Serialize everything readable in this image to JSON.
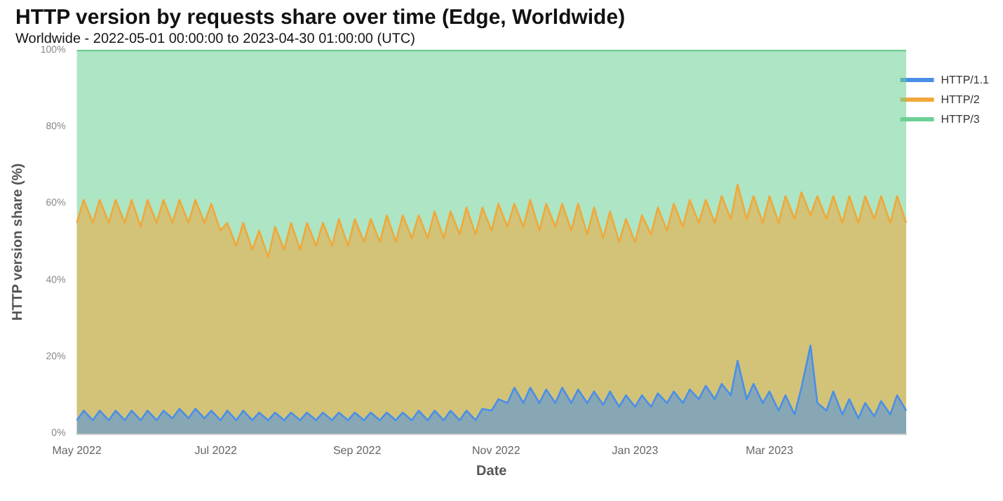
{
  "chart_data": {
    "type": "area",
    "stacked": true,
    "title": "HTTP version by requests share over time (Edge, Worldwide)",
    "subtitle": "Worldwide - 2022-05-01 00:00:00 to 2023-04-30 01:00:00 (UTC)",
    "xlabel": "Date",
    "ylabel": "HTTP version share (%)",
    "legend": "top right",
    "x": [
      "2022-05-01",
      "2022-05-04",
      "2022-05-08",
      "2022-05-11",
      "2022-05-15",
      "2022-05-18",
      "2022-05-22",
      "2022-05-25",
      "2022-05-29",
      "2022-06-01",
      "2022-06-05",
      "2022-06-08",
      "2022-06-12",
      "2022-06-15",
      "2022-06-19",
      "2022-06-22",
      "2022-06-26",
      "2022-06-29",
      "2022-07-03",
      "2022-07-06",
      "2022-07-10",
      "2022-07-13",
      "2022-07-17",
      "2022-07-20",
      "2022-07-24",
      "2022-07-27",
      "2022-07-31",
      "2022-08-03",
      "2022-08-07",
      "2022-08-10",
      "2022-08-14",
      "2022-08-17",
      "2022-08-21",
      "2022-08-24",
      "2022-08-28",
      "2022-08-31",
      "2022-09-04",
      "2022-09-07",
      "2022-09-11",
      "2022-09-14",
      "2022-09-18",
      "2022-09-21",
      "2022-09-25",
      "2022-09-28",
      "2022-10-02",
      "2022-10-05",
      "2022-10-09",
      "2022-10-12",
      "2022-10-16",
      "2022-10-19",
      "2022-10-23",
      "2022-10-26",
      "2022-10-30",
      "2022-11-02",
      "2022-11-06",
      "2022-11-09",
      "2022-11-13",
      "2022-11-16",
      "2022-11-20",
      "2022-11-23",
      "2022-11-27",
      "2022-11-30",
      "2022-12-04",
      "2022-12-07",
      "2022-12-11",
      "2022-12-14",
      "2022-12-18",
      "2022-12-21",
      "2022-12-25",
      "2022-12-28",
      "2023-01-01",
      "2023-01-04",
      "2023-01-08",
      "2023-01-11",
      "2023-01-15",
      "2023-01-18",
      "2023-01-22",
      "2023-01-25",
      "2023-01-29",
      "2023-02-01",
      "2023-02-05",
      "2023-02-08",
      "2023-02-12",
      "2023-02-15",
      "2023-02-19",
      "2023-02-22",
      "2023-02-26",
      "2023-03-01",
      "2023-03-05",
      "2023-03-08",
      "2023-03-12",
      "2023-03-15",
      "2023-03-19",
      "2023-03-22",
      "2023-03-26",
      "2023-03-29",
      "2023-04-02",
      "2023-04-05",
      "2023-04-09",
      "2023-04-12",
      "2023-04-16",
      "2023-04-19",
      "2023-04-23",
      "2023-04-26",
      "2023-04-30"
    ],
    "series": [
      {
        "name": "HTTP/1.1",
        "color": "#4a8fe7",
        "values": [
          3.5,
          6,
          3.5,
          6,
          3.5,
          6,
          3.5,
          6,
          3.5,
          6,
          3.5,
          6,
          4,
          6.5,
          4,
          6.5,
          4,
          6,
          3.5,
          6,
          3.5,
          6,
          3.5,
          5.5,
          3.5,
          5.5,
          3.5,
          5.5,
          3.5,
          5.5,
          3.5,
          5.5,
          3.5,
          5.5,
          3.5,
          5.5,
          3.5,
          5.5,
          3.5,
          5.5,
          3.5,
          5.5,
          3.5,
          6,
          3.5,
          6,
          3.5,
          6,
          3.5,
          6,
          3.5,
          6.5,
          6,
          9,
          8,
          12,
          8,
          12,
          8,
          11.5,
          8,
          12,
          8,
          11.5,
          8,
          11,
          7.5,
          11,
          7,
          10,
          7,
          10,
          7,
          10.5,
          8,
          11,
          8,
          11.5,
          9,
          12.5,
          9,
          13,
          10,
          19,
          9,
          13,
          8,
          11,
          6,
          10,
          5,
          12,
          23,
          8,
          6,
          11,
          5,
          9,
          4,
          8,
          4.5,
          8.5,
          5,
          10,
          6
        ]
      },
      {
        "name": "HTTP/2",
        "color": "#f0a83a",
        "values": [
          51.5,
          55,
          51.5,
          55,
          51.5,
          55,
          51.5,
          55,
          50.5,
          55,
          51.5,
          55,
          51,
          54.5,
          51,
          54.5,
          51,
          54,
          49.5,
          49,
          45.5,
          49,
          44.5,
          47.5,
          42.5,
          48.5,
          44.5,
          49.5,
          44.5,
          49.5,
          45.5,
          49.5,
          45.5,
          50.5,
          45.5,
          50.5,
          46.5,
          50.5,
          46.5,
          51.5,
          46.5,
          51.5,
          47.5,
          51,
          47.5,
          52,
          47.5,
          52,
          48.5,
          53,
          48.5,
          52.5,
          47,
          51,
          46,
          48,
          46,
          49,
          45,
          48.5,
          46,
          48,
          45,
          48.5,
          44,
          48,
          43.5,
          47,
          43,
          46,
          43,
          47,
          45,
          48.5,
          45,
          49,
          46,
          49.5,
          46,
          48.5,
          46,
          49,
          46,
          46,
          47,
          49,
          47,
          51,
          49,
          52,
          51,
          51,
          34,
          54,
          50,
          51,
          50,
          53,
          51,
          54,
          51.5,
          53.5,
          50,
          52,
          49
        ]
      },
      {
        "name": "HTTP/3",
        "color": "#6ccf94",
        "values": [
          45,
          39,
          45,
          39,
          45,
          39,
          45,
          39,
          46,
          39,
          45,
          39,
          45,
          39,
          45,
          39,
          45,
          40,
          47,
          45,
          51,
          45,
          52,
          47,
          54,
          46,
          52,
          45,
          52,
          45,
          51,
          45,
          51,
          44,
          51,
          44,
          50,
          44,
          50,
          43,
          50,
          43,
          49,
          43,
          49,
          42,
          49,
          42,
          48,
          41,
          48,
          41,
          47,
          40,
          46,
          40,
          46,
          39,
          47,
          40,
          46,
          40,
          47,
          40,
          48,
          41,
          49,
          42,
          50,
          44,
          50,
          43,
          48,
          41,
          47,
          40,
          46,
          39,
          45,
          39,
          45,
          38,
          44,
          35,
          44,
          38,
          45,
          38,
          45,
          38,
          44,
          37,
          43,
          38,
          44,
          38,
          45,
          38,
          45,
          38,
          44,
          38,
          45,
          38,
          45
        ]
      }
    ],
    "xlim": [
      "2022-05-01",
      "2023-04-30"
    ],
    "xticks": [
      {
        "value": "2022-05-01",
        "label": "May 2022"
      },
      {
        "value": "2022-07-01",
        "label": "Jul 2022"
      },
      {
        "value": "2022-09-01",
        "label": "Sep 2022"
      },
      {
        "value": "2022-11-01",
        "label": "Nov 2022"
      },
      {
        "value": "2023-01-01",
        "label": "Jan 2023"
      },
      {
        "value": "2023-03-01",
        "label": "Mar 2023"
      }
    ],
    "ylim": [
      0,
      100
    ],
    "yticks": [
      {
        "value": 0,
        "label": "0%"
      },
      {
        "value": 20,
        "label": "20%"
      },
      {
        "value": 40,
        "label": "40%"
      },
      {
        "value": 60,
        "label": "60%"
      },
      {
        "value": 80,
        "label": "80%"
      },
      {
        "value": 100,
        "label": "100%"
      }
    ]
  }
}
